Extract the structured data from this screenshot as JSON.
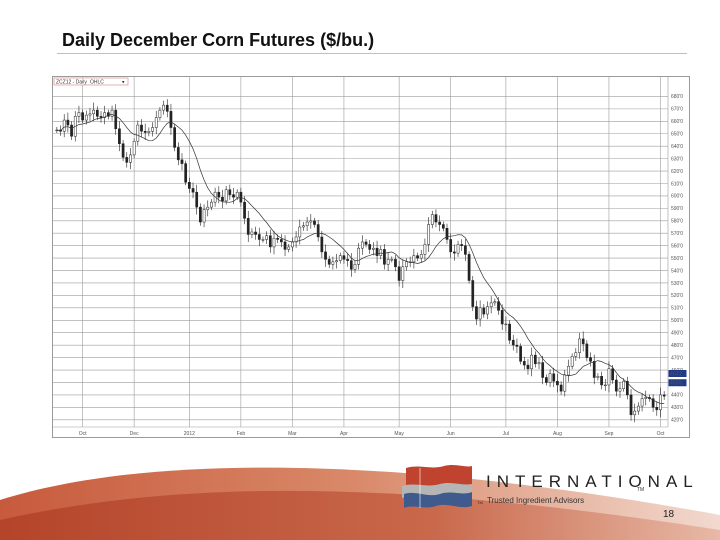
{
  "page": {
    "title": "Daily December Corn Futures ($/bu.)",
    "page_number": "18"
  },
  "branding": {
    "company": "INTERNATIONAL",
    "trademark": "TM",
    "tagline": "Trusted Ingredient Advisors",
    "tagline_mark": "TM",
    "colors": {
      "red": "#c0432f",
      "blue": "#3f5a8c",
      "gray": "#b5b5b5",
      "swoosh": "#c75a3c"
    }
  },
  "chart_data": {
    "type": "candlestick",
    "ticker_text": "ZCZ12 - Daily",
    "ticker_hint": "OHLC",
    "x_ticks": [
      "Oct",
      "Dec",
      "2012",
      "Feb",
      "Mar",
      "Apr",
      "May",
      "Jun",
      "Jul",
      "Aug",
      "Sep",
      "Oct"
    ],
    "x_tick_index": [
      7,
      21,
      36,
      50,
      64,
      78,
      93,
      107,
      122,
      136,
      150,
      164
    ],
    "y_ticks": [
      "680'0",
      "670'0",
      "660'0",
      "650'0",
      "640'0",
      "630'0",
      "620'0",
      "610'0",
      "600'0",
      "590'0",
      "580'0",
      "570'0",
      "560'0",
      "550'0",
      "540'0",
      "530'0",
      "520'0",
      "510'0",
      "500'0",
      "490'0",
      "480'0",
      "470'0",
      "460'0",
      "450'0",
      "440'0",
      "430'0",
      "420'0"
    ],
    "current_price_labels": [
      "454'2",
      "453'6"
    ],
    "ylim": [
      415,
      690
    ],
    "close": [
      653,
      652,
      661,
      657,
      648,
      664,
      667,
      661,
      665,
      666,
      669,
      664,
      663,
      667,
      664,
      669,
      654,
      642,
      631,
      627,
      633,
      644,
      657,
      652,
      651,
      652,
      655,
      663,
      669,
      673,
      668,
      655,
      639,
      629,
      626,
      611,
      606,
      603,
      591,
      579,
      589,
      591,
      595,
      603,
      599,
      596,
      605,
      601,
      599,
      603,
      595,
      582,
      569,
      571,
      569,
      565,
      565,
      568,
      559,
      566,
      565,
      563,
      557,
      559,
      563,
      567,
      575,
      576,
      579,
      580,
      577,
      567,
      555,
      549,
      545,
      547,
      548,
      552,
      549,
      548,
      541,
      545,
      558,
      563,
      561,
      557,
      558,
      552,
      557,
      545,
      549,
      549,
      543,
      532,
      543,
      547,
      547,
      552,
      550,
      553,
      561,
      577,
      585,
      579,
      577,
      574,
      565,
      555,
      554,
      561,
      560,
      553,
      532,
      511,
      501,
      510,
      505,
      511,
      514,
      515,
      508,
      497,
      497,
      484,
      480,
      479,
      467,
      464,
      461,
      472,
      465,
      466,
      454,
      450,
      457,
      451,
      448,
      443,
      456,
      463,
      471,
      474,
      485,
      481,
      470,
      467,
      454,
      455,
      448,
      448,
      461,
      452,
      443,
      445,
      451,
      440,
      424,
      427,
      431,
      437,
      438,
      437,
      430,
      428,
      440,
      439
    ],
    "series": [
      {
        "name": "",
        "type": "candlestick"
      },
      {
        "name": "",
        "type": "moving_average"
      }
    ]
  }
}
